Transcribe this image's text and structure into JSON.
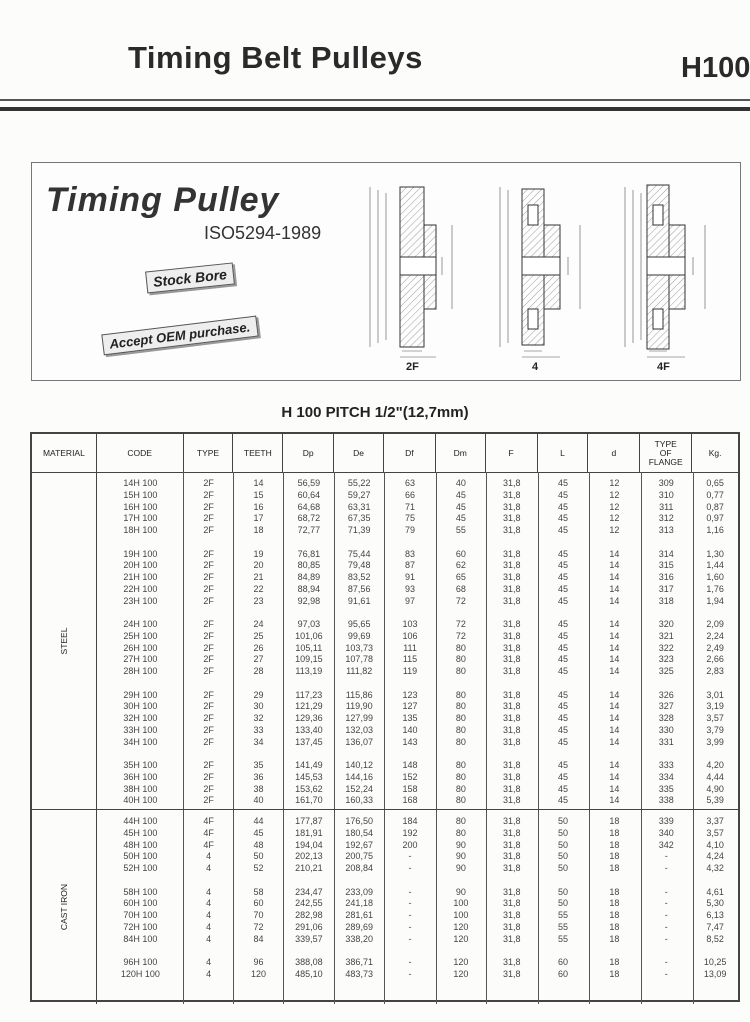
{
  "header": {
    "title": "Timing Belt Pulleys",
    "series_code": "H100"
  },
  "banner": {
    "title": "Timing Pulley",
    "standard": "ISO5294-1989",
    "tag1": "Stock Bore",
    "tag2": "Accept OEM purchase.",
    "diagrams": [
      {
        "type": "2F",
        "labels": [
          "Df",
          "Dp",
          "De",
          "d",
          "Dm",
          "F",
          "L"
        ]
      },
      {
        "type": "4",
        "labels": [
          "Dp",
          "De",
          "d",
          "Dm",
          "F",
          "L"
        ]
      },
      {
        "type": "4F",
        "labels": [
          "Df",
          "Dp",
          "De",
          "d",
          "Dm",
          "F",
          "L"
        ]
      }
    ]
  },
  "table_title": "H 100 PITCH 1/2\"(12,7mm)",
  "columns": [
    "MATERIAL",
    "CODE",
    "TYPE",
    "TEETH",
    "Dp",
    "De",
    "Df",
    "Dm",
    "F",
    "L",
    "d",
    "TYPE OF FLANGE",
    "Kg."
  ],
  "sections": [
    {
      "material": "STEEL",
      "groups": [
        [
          [
            "14H 100",
            "2F",
            "14",
            "56,59",
            "55,22",
            "63",
            "40",
            "31,8",
            "45",
            "12",
            "309",
            "0,65"
          ],
          [
            "15H 100",
            "2F",
            "15",
            "60,64",
            "59,27",
            "66",
            "45",
            "31,8",
            "45",
            "12",
            "310",
            "0,77"
          ],
          [
            "16H 100",
            "2F",
            "16",
            "64,68",
            "63,31",
            "71",
            "45",
            "31,8",
            "45",
            "12",
            "311",
            "0,87"
          ],
          [
            "17H 100",
            "2F",
            "17",
            "68,72",
            "67,35",
            "75",
            "45",
            "31,8",
            "45",
            "12",
            "312",
            "0,97"
          ],
          [
            "18H 100",
            "2F",
            "18",
            "72,77",
            "71,39",
            "79",
            "55",
            "31,8",
            "45",
            "12",
            "313",
            "1,16"
          ]
        ],
        [
          [
            "19H 100",
            "2F",
            "19",
            "76,81",
            "75,44",
            "83",
            "60",
            "31,8",
            "45",
            "14",
            "314",
            "1,30"
          ],
          [
            "20H 100",
            "2F",
            "20",
            "80,85",
            "79,48",
            "87",
            "62",
            "31,8",
            "45",
            "14",
            "315",
            "1,44"
          ],
          [
            "21H 100",
            "2F",
            "21",
            "84,89",
            "83,52",
            "91",
            "65",
            "31,8",
            "45",
            "14",
            "316",
            "1,60"
          ],
          [
            "22H 100",
            "2F",
            "22",
            "88,94",
            "87,56",
            "93",
            "68",
            "31,8",
            "45",
            "14",
            "317",
            "1,76"
          ],
          [
            "23H 100",
            "2F",
            "23",
            "92,98",
            "91,61",
            "97",
            "72",
            "31,8",
            "45",
            "14",
            "318",
            "1,94"
          ]
        ],
        [
          [
            "24H 100",
            "2F",
            "24",
            "97,03",
            "95,65",
            "103",
            "72",
            "31,8",
            "45",
            "14",
            "320",
            "2,09"
          ],
          [
            "25H 100",
            "2F",
            "25",
            "101,06",
            "99,69",
            "106",
            "72",
            "31,8",
            "45",
            "14",
            "321",
            "2,24"
          ],
          [
            "26H 100",
            "2F",
            "26",
            "105,11",
            "103,73",
            "111",
            "80",
            "31,8",
            "45",
            "14",
            "322",
            "2,49"
          ],
          [
            "27H 100",
            "2F",
            "27",
            "109,15",
            "107,78",
            "115",
            "80",
            "31,8",
            "45",
            "14",
            "323",
            "2,66"
          ],
          [
            "28H 100",
            "2F",
            "28",
            "113,19",
            "111,82",
            "119",
            "80",
            "31,8",
            "45",
            "14",
            "325",
            "2,83"
          ]
        ],
        [
          [
            "29H 100",
            "2F",
            "29",
            "117,23",
            "115,86",
            "123",
            "80",
            "31,8",
            "45",
            "14",
            "326",
            "3,01"
          ],
          [
            "30H 100",
            "2F",
            "30",
            "121,29",
            "119,90",
            "127",
            "80",
            "31,8",
            "45",
            "14",
            "327",
            "3,19"
          ],
          [
            "32H 100",
            "2F",
            "32",
            "129,36",
            "127,99",
            "135",
            "80",
            "31,8",
            "45",
            "14",
            "328",
            "3,57"
          ],
          [
            "33H 100",
            "2F",
            "33",
            "133,40",
            "132,03",
            "140",
            "80",
            "31,8",
            "45",
            "14",
            "330",
            "3,79"
          ],
          [
            "34H 100",
            "2F",
            "34",
            "137,45",
            "136,07",
            "143",
            "80",
            "31,8",
            "45",
            "14",
            "331",
            "3,99"
          ]
        ],
        [
          [
            "35H 100",
            "2F",
            "35",
            "141,49",
            "140,12",
            "148",
            "80",
            "31,8",
            "45",
            "14",
            "333",
            "4,20"
          ],
          [
            "36H 100",
            "2F",
            "36",
            "145,53",
            "144,16",
            "152",
            "80",
            "31,8",
            "45",
            "14",
            "334",
            "4,44"
          ],
          [
            "38H 100",
            "2F",
            "38",
            "153,62",
            "152,24",
            "158",
            "80",
            "31,8",
            "45",
            "14",
            "335",
            "4,90"
          ],
          [
            "40H 100",
            "2F",
            "40",
            "161,70",
            "160,33",
            "168",
            "80",
            "31,8",
            "45",
            "14",
            "338",
            "5,39"
          ]
        ]
      ]
    },
    {
      "material": "CAST IRON",
      "groups": [
        [
          [
            "44H 100",
            "4F",
            "44",
            "177,87",
            "176,50",
            "184",
            "80",
            "31,8",
            "50",
            "18",
            "339",
            "3,37"
          ],
          [
            "45H 100",
            "4F",
            "45",
            "181,91",
            "180,54",
            "192",
            "80",
            "31,8",
            "50",
            "18",
            "340",
            "3,57"
          ],
          [
            "48H 100",
            "4F",
            "48",
            "194,04",
            "192,67",
            "200",
            "90",
            "31,8",
            "50",
            "18",
            "342",
            "4,10"
          ],
          [
            "50H 100",
            "4",
            "50",
            "202,13",
            "200,75",
            "-",
            "90",
            "31,8",
            "50",
            "18",
            "-",
            "4,24"
          ],
          [
            "52H 100",
            "4",
            "52",
            "210,21",
            "208,84",
            "-",
            "90",
            "31,8",
            "50",
            "18",
            "-",
            "4,32"
          ]
        ],
        [
          [
            "58H 100",
            "4",
            "58",
            "234,47",
            "233,09",
            "-",
            "90",
            "31,8",
            "50",
            "18",
            "-",
            "4,61"
          ],
          [
            "60H 100",
            "4",
            "60",
            "242,55",
            "241,18",
            "-",
            "100",
            "31,8",
            "50",
            "18",
            "-",
            "5,30"
          ],
          [
            "70H 100",
            "4",
            "70",
            "282,98",
            "281,61",
            "-",
            "100",
            "31,8",
            "55",
            "18",
            "-",
            "6,13"
          ],
          [
            "72H 100",
            "4",
            "72",
            "291,06",
            "289,69",
            "-",
            "120",
            "31,8",
            "55",
            "18",
            "-",
            "7,47"
          ],
          [
            "84H 100",
            "4",
            "84",
            "339,57",
            "338,20",
            "-",
            "120",
            "31,8",
            "55",
            "18",
            "-",
            "8,52"
          ]
        ],
        [
          [
            "96H 100",
            "4",
            "96",
            "388,08",
            "386,71",
            "-",
            "120",
            "31,8",
            "60",
            "18",
            "-",
            "10,25"
          ],
          [
            "120H 100",
            "4",
            "120",
            "485,10",
            "483,73",
            "-",
            "120",
            "31,8",
            "60",
            "18",
            "-",
            "13,09"
          ]
        ]
      ]
    }
  ]
}
